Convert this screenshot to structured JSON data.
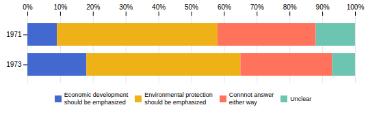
{
  "chart_data": {
    "type": "bar",
    "orientation": "horizontal",
    "stacked": true,
    "categories": [
      "1971",
      "1973"
    ],
    "series": [
      {
        "name": "Economic development\nshould be emphasized",
        "values": [
          9,
          18
        ]
      },
      {
        "name": "Environmental protection\nshould be emphasized",
        "values": [
          49,
          47
        ]
      },
      {
        "name": "Connnot answer\neither way",
        "values": [
          30,
          28
        ]
      },
      {
        "name": "Unclear",
        "values": [
          12,
          7
        ]
      }
    ],
    "xlim": [
      0,
      100
    ],
    "xticks": [
      {
        "value": 0,
        "label": "0%"
      },
      {
        "value": 10,
        "label": "10%"
      },
      {
        "value": 20,
        "label": "20%"
      },
      {
        "value": 30,
        "label": "30%"
      },
      {
        "value": 40,
        "label": "40%"
      },
      {
        "value": 50,
        "label": "50%"
      },
      {
        "value": 60,
        "label": "60%"
      },
      {
        "value": 70,
        "label": "70%"
      },
      {
        "value": 80,
        "label": "80%"
      },
      {
        "value": 90,
        "label": "90%"
      },
      {
        "value": 100,
        "label": "100%"
      }
    ],
    "grid": true,
    "legend": "bottom"
  }
}
